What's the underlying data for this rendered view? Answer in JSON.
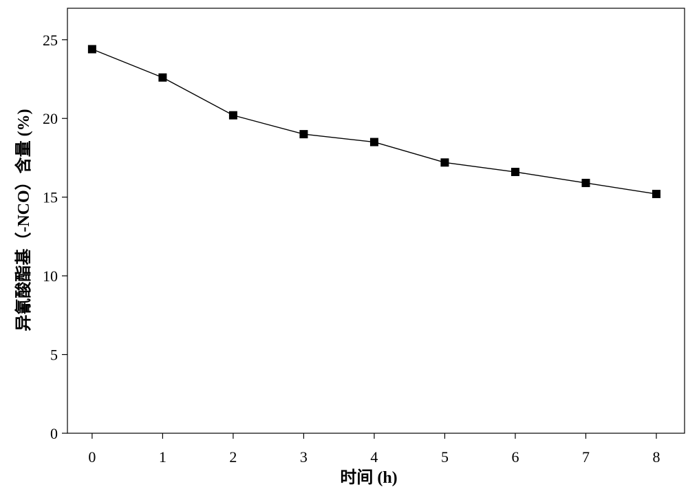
{
  "chart_data": {
    "type": "line",
    "title": "",
    "xlabel": "时间 (h)",
    "ylabel": "异氰酸酯基（-NCO）含量 (%)",
    "x": [
      0,
      1,
      2,
      3,
      4,
      5,
      6,
      7,
      8
    ],
    "series": [
      {
        "values": [
          24.4,
          22.6,
          20.2,
          19.0,
          18.5,
          17.2,
          16.6,
          15.9,
          15.2
        ],
        "color": "#000000",
        "marker": "square"
      }
    ],
    "xlim": [
      -0.35,
      8.4
    ],
    "ylim": [
      0,
      27
    ],
    "xticks": [
      "0",
      "1",
      "2",
      "3",
      "4",
      "5",
      "6",
      "7",
      "8"
    ],
    "yticks": [
      "0",
      "5",
      "10",
      "15",
      "20",
      "25"
    ],
    "grid": false,
    "legend": "none"
  }
}
